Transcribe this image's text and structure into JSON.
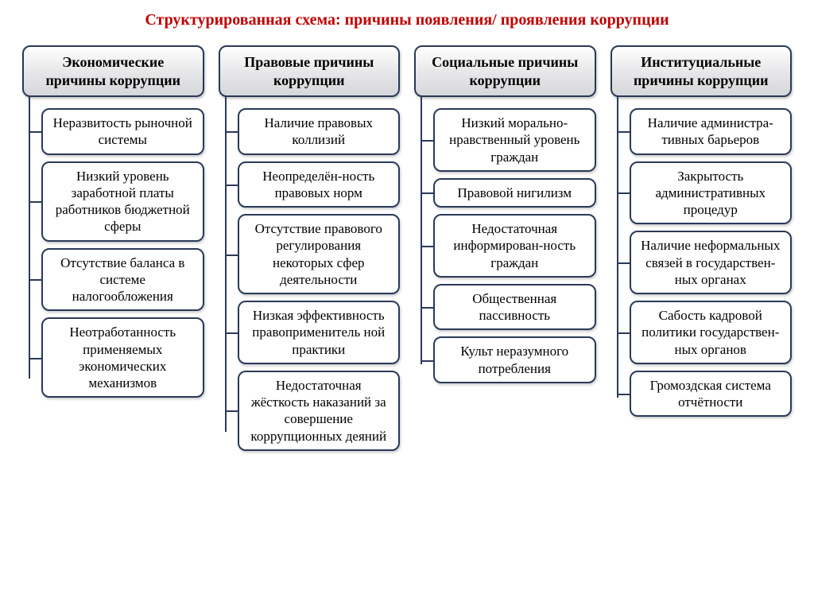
{
  "title": "Структурированная схема: причины появления/ проявления  коррупции",
  "type": "tree",
  "background_color": "#ffffff",
  "title_color": "#c00000",
  "title_fontsize": 20,
  "box_border_color": "#2a3a5a",
  "box_text_color": "#000000",
  "header_gradient": [
    "#ffffff",
    "#e8e8ea",
    "#d6d7da"
  ],
  "item_bg": "#ffffff",
  "border_radius": 10,
  "font_family": "Times New Roman",
  "item_fontsize": 17,
  "header_fontsize": 18,
  "connector_color": "#2a3a5a",
  "columns": [
    {
      "header": "Экономические причины коррупции",
      "items": [
        "Неразвитость рыночной системы",
        "Низкий уровень заработной платы работников бюджетной сферы",
        "Отсутствие баланса в системе налогообложения",
        "Неотработанность применяемых экономических механизмов"
      ]
    },
    {
      "header": "Правовые причины коррупции",
      "items": [
        "Наличие правовых коллизий",
        "Неопределён-ность правовых норм",
        "Отсутствие правового регулирования некоторых сфер деятельности",
        "Низкая эффективность правоприменитель ной практики",
        "Недостаточная жёсткость наказаний за совершение коррупционных деяний"
      ]
    },
    {
      "header": "Социальные причины коррупции",
      "items": [
        "Низкий морально-нравственный уровень граждан",
        "Правовой нигилизм",
        "Недостаточная информирован-ность граждан",
        "Общественная пассивность",
        "Культ неразумного потребления"
      ]
    },
    {
      "header": "Институциальные причины коррупции",
      "items": [
        "Наличие администра-тивных барьеров",
        "Закрытость административных процедур",
        "Наличие неформальных связей в государствен-ных органах",
        "Сабость кадровой политики государствен-ных органов",
        "Громоздская система отчётности"
      ]
    }
  ]
}
